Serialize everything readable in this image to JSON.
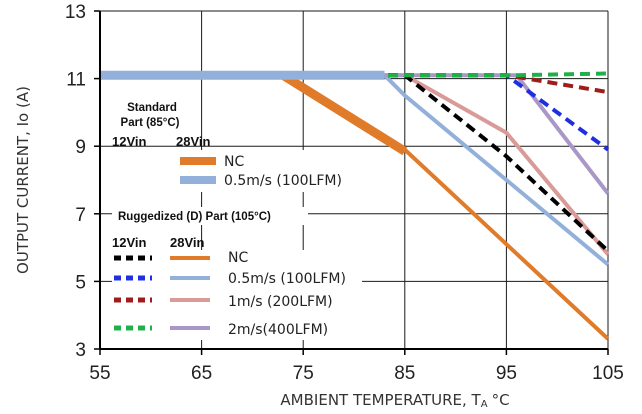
{
  "chart_data": {
    "type": "line",
    "title": "",
    "xlabel": "AMBIENT TEMPERATURE, T",
    "xlabel_sub": "A",
    "xlabel_unit": "°C",
    "ylabel": "OUTPUT CURRENT, Io (A)",
    "xlim": [
      55,
      105
    ],
    "ylim": [
      3,
      13
    ],
    "xticks": [
      55,
      65,
      75,
      85,
      95,
      105
    ],
    "yticks": [
      3,
      5,
      7,
      9,
      11,
      13
    ],
    "grid": true,
    "legend_position": "left-inside",
    "annotations": {
      "standard_title_1": "Standard",
      "standard_title_2": "Part (85°C)",
      "std_col_12": "12Vin",
      "std_col_28": "28Vin",
      "rugged_title": "Ruggedized (D) Part (105°C)",
      "rug_col_12": "12Vin",
      "rug_col_28": "28Vin"
    },
    "legend": {
      "standard": [
        {
          "label": "NC",
          "color": "#E07B2A"
        },
        {
          "label": "0.5m/s (100LFM)",
          "color": "#92B0DA"
        }
      ],
      "ruggedized": [
        {
          "label": "NC",
          "color12": "#000000",
          "color28": "#E07B2A"
        },
        {
          "label": "0.5m/s (100LFM)",
          "color12": "#1F2FE0",
          "color28": "#92B0DA"
        },
        {
          "label": "1m/s (200LFM)",
          "color12": "#A01C1C",
          "color28": "#D99A98"
        },
        {
          "label": "2m/s(400LFM)",
          "color12": "#20B04A",
          "color28": "#A997C8"
        }
      ]
    },
    "series": [
      {
        "group": "standard",
        "vin": "28Vin",
        "air": "NC",
        "color": "#E07B2A",
        "style": "thick",
        "x": [
          73,
          85
        ],
        "y": [
          11.1,
          8.85
        ]
      },
      {
        "group": "standard",
        "vin": "28Vin",
        "air": "0.5m/s (100LFM)",
        "color": "#92B0DA",
        "style": "thick",
        "x": [
          55,
          83
        ],
        "y": [
          11.1,
          11.1
        ]
      },
      {
        "group": "ruggedized",
        "vin": "28Vin",
        "air": "NC",
        "color": "#E07B2A",
        "style": "solid",
        "x": [
          55,
          73,
          85,
          95,
          105
        ],
        "y": [
          11.1,
          11.1,
          8.9,
          6.1,
          3.3
        ]
      },
      {
        "group": "ruggedized",
        "vin": "28Vin",
        "air": "0.5m/s (100LFM)",
        "color": "#92B0DA",
        "style": "solid",
        "x": [
          55,
          83,
          85,
          95,
          105
        ],
        "y": [
          11.1,
          11.1,
          10.5,
          8.0,
          5.5
        ]
      },
      {
        "group": "ruggedized",
        "vin": "28Vin",
        "air": "1m/s (200LFM)",
        "color": "#D99A98",
        "style": "solid",
        "x": [
          55,
          85,
          95,
          105
        ],
        "y": [
          11.1,
          11.1,
          9.4,
          5.8
        ]
      },
      {
        "group": "ruggedized",
        "vin": "28Vin",
        "air": "2m/s(400LFM)",
        "color": "#A997C8",
        "style": "solid",
        "x": [
          55,
          96,
          105
        ],
        "y": [
          11.1,
          11.1,
          7.6
        ]
      },
      {
        "group": "ruggedized",
        "vin": "12Vin",
        "air": "NC",
        "color": "#000000",
        "style": "dashed",
        "x": [
          55,
          85,
          95,
          105
        ],
        "y": [
          11.1,
          11.1,
          8.7,
          5.9
        ]
      },
      {
        "group": "ruggedized",
        "vin": "12Vin",
        "air": "0.5m/s (100LFM)",
        "color": "#1F2FE0",
        "style": "dashed",
        "x": [
          55,
          95,
          105
        ],
        "y": [
          11.1,
          11.1,
          8.9
        ]
      },
      {
        "group": "ruggedized",
        "vin": "12Vin",
        "air": "1m/s (200LFM)",
        "color": "#A01C1C",
        "style": "dashed",
        "x": [
          55,
          95,
          105
        ],
        "y": [
          11.1,
          11.1,
          10.6
        ]
      },
      {
        "group": "ruggedized",
        "vin": "12Vin",
        "air": "2m/s(400LFM)",
        "color": "#20B04A",
        "style": "dashed",
        "x": [
          55,
          96,
          105
        ],
        "y": [
          11.1,
          11.1,
          11.15
        ]
      }
    ]
  }
}
